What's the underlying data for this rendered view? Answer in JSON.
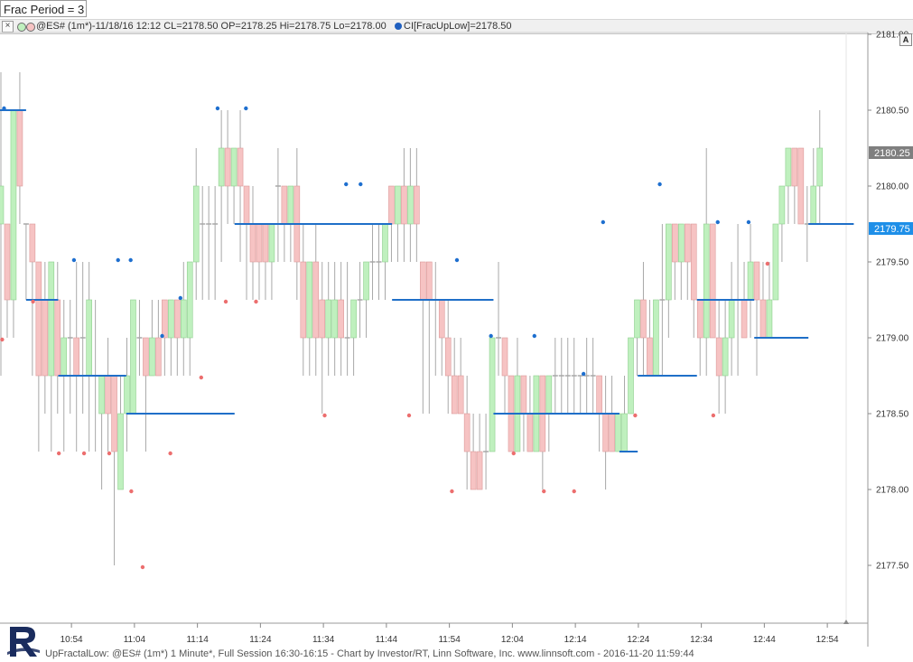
{
  "period_label": "Frac Period = 3",
  "info_bar": {
    "text": "@ES# (1m*)-11/18/16 12:12 CL=2178.50 OP=2178.25 Hi=2178.75 Lo=2178.00",
    "indicator_text": "CI[FracUpLow]=2178.50",
    "close_icon": "close-x-icon"
  },
  "status_text": "UpFractalLow: @ES# (1m*) 1 Minute*, Full Session 16:30-16:15 - Chart by Investor/RT, Linn Software, Inc. www.linnsoft.com - 2016-11-20 11:59:44",
  "autoscale_button": "A",
  "price_tags": {
    "last": "2180.25",
    "fractal": "2179.75"
  },
  "colors": {
    "up_body": "#bff0be",
    "down_body": "#f6c3c3",
    "wick": "#a8a8a8",
    "fractal_line": "#1f6fc8",
    "up_dot": "#1e6fcf",
    "low_dot": "#ec6e6e",
    "last_tag": "#7f7f7f",
    "fractal_tag": "#1e8fe8"
  },
  "chart_data": {
    "type": "candlestick",
    "bar_interval": "1 Minute",
    "y_ticks": [
      "2181.00",
      "2180.50",
      "2180.00",
      "2179.50",
      "2179.00",
      "2178.50",
      "2178.00",
      "2177.50"
    ],
    "x_ticks": [
      "10:54",
      "11:04",
      "11:14",
      "11:24",
      "11:34",
      "11:44",
      "11:54",
      "12:04",
      "12:14",
      "12:24",
      "12:34",
      "12:44",
      "12:54"
    ],
    "ylim": [
      2177.05,
      2181.15
    ],
    "candles": [
      [
        2179.75,
        2180.0,
        2178.75,
        2180.75
      ],
      [
        2179.75,
        2179.25,
        2179.0,
        2179.75
      ],
      [
        2179.25,
        2180.5,
        2179.0,
        2180.5
      ],
      [
        2180.5,
        2180.0,
        2179.75,
        2180.75
      ],
      [
        2179.75,
        2179.75,
        2179.25,
        2179.75
      ],
      [
        2179.75,
        2179.5,
        2178.75,
        2179.75
      ],
      [
        2179.5,
        2178.75,
        2178.25,
        2179.5
      ],
      [
        2179.25,
        2178.75,
        2178.5,
        2179.5
      ],
      [
        2178.75,
        2179.5,
        2178.25,
        2179.5
      ],
      [
        2179.25,
        2178.75,
        2178.5,
        2179.5
      ],
      [
        2178.75,
        2179.0,
        2178.25,
        2179.25
      ],
      [
        2179.0,
        2179.0,
        2178.5,
        2179.25
      ],
      [
        2179.0,
        2178.75,
        2178.25,
        2179.5
      ],
      [
        2179.0,
        2179.0,
        2178.5,
        2179.5
      ],
      [
        2178.75,
        2179.25,
        2178.25,
        2179.5
      ],
      [
        2178.75,
        2178.75,
        2178.25,
        2179.25
      ],
      [
        2178.5,
        2178.75,
        2178.0,
        2178.75
      ],
      [
        2178.75,
        2178.5,
        2178.25,
        2179.0
      ],
      [
        2178.75,
        2178.25,
        2177.5,
        2178.75
      ],
      [
        2178.0,
        2178.5,
        2178.0,
        2178.75
      ],
      [
        2178.5,
        2178.75,
        2178.25,
        2179.0
      ],
      [
        2178.5,
        2179.25,
        2178.5,
        2179.25
      ],
      [
        2179.0,
        2179.0,
        2178.75,
        2179.25
      ],
      [
        2179.0,
        2178.75,
        2178.25,
        2179.0
      ],
      [
        2178.75,
        2179.0,
        2178.75,
        2179.25
      ],
      [
        2179.0,
        2178.75,
        2178.75,
        2179.25
      ],
      [
        2179.25,
        2179.0,
        2178.75,
        2179.25
      ],
      [
        2179.0,
        2179.25,
        2178.75,
        2179.25
      ],
      [
        2179.25,
        2179.0,
        2178.75,
        2179.25
      ],
      [
        2179.0,
        2179.25,
        2178.75,
        2179.5
      ],
      [
        2179.0,
        2179.5,
        2178.75,
        2179.5
      ],
      [
        2179.5,
        2180.0,
        2179.25,
        2180.25
      ],
      [
        2179.75,
        2179.75,
        2179.25,
        2180.0
      ],
      [
        2179.75,
        2179.75,
        2179.25,
        2180.0
      ],
      [
        2179.75,
        2179.75,
        2179.25,
        2180.0
      ],
      [
        2180.0,
        2180.25,
        2179.5,
        2180.5
      ],
      [
        2180.25,
        2180.0,
        2179.75,
        2180.5
      ],
      [
        2180.0,
        2180.25,
        2179.75,
        2180.25
      ],
      [
        2180.25,
        2180.0,
        2179.5,
        2180.5
      ],
      [
        2180.0,
        2179.75,
        2179.25,
        2180.0
      ],
      [
        2179.75,
        2179.5,
        2179.25,
        2180.0
      ],
      [
        2179.75,
        2179.5,
        2179.25,
        2179.75
      ],
      [
        2179.75,
        2179.5,
        2179.25,
        2179.75
      ],
      [
        2179.5,
        2179.75,
        2179.25,
        2179.75
      ],
      [
        2180.0,
        2180.0,
        2179.5,
        2180.25
      ],
      [
        2180.0,
        2179.75,
        2179.5,
        2180.0
      ],
      [
        2179.75,
        2180.0,
        2179.5,
        2180.0
      ],
      [
        2180.0,
        2179.5,
        2179.25,
        2180.25
      ],
      [
        2179.5,
        2179.0,
        2178.75,
        2179.75
      ],
      [
        2179.0,
        2179.5,
        2178.75,
        2179.5
      ],
      [
        2179.5,
        2179.0,
        2178.75,
        2179.75
      ],
      [
        2179.25,
        2179.0,
        2178.5,
        2179.5
      ],
      [
        2179.0,
        2179.25,
        2178.75,
        2179.5
      ],
      [
        2179.0,
        2179.25,
        2178.75,
        2179.5
      ],
      [
        2179.25,
        2179.0,
        2178.75,
        2179.5
      ],
      [
        2179.0,
        2179.0,
        2178.75,
        2179.5
      ],
      [
        2179.0,
        2179.25,
        2178.75,
        2179.25
      ],
      [
        2179.25,
        2179.25,
        2179.0,
        2179.5
      ],
      [
        2179.25,
        2179.5,
        2179.0,
        2179.5
      ],
      [
        2179.5,
        2179.5,
        2179.25,
        2179.75
      ],
      [
        2179.5,
        2179.5,
        2179.25,
        2179.75
      ],
      [
        2179.5,
        2179.75,
        2179.25,
        2179.75
      ],
      [
        2180.0,
        2179.75,
        2179.5,
        2180.0
      ],
      [
        2179.75,
        2180.0,
        2179.5,
        2180.0
      ],
      [
        2180.0,
        2179.75,
        2179.5,
        2180.25
      ],
      [
        2179.75,
        2180.0,
        2179.5,
        2180.25
      ],
      [
        2180.0,
        2179.75,
        2179.5,
        2180.25
      ],
      [
        2179.5,
        2179.25,
        2178.5,
        2179.5
      ],
      [
        2179.5,
        2179.25,
        2178.5,
        2179.5
      ],
      [
        2179.25,
        2179.25,
        2178.75,
        2179.5
      ],
      [
        2179.25,
        2179.0,
        2178.75,
        2179.25
      ],
      [
        2179.0,
        2178.75,
        2178.5,
        2179.25
      ],
      [
        2178.75,
        2178.5,
        2178.5,
        2179.0
      ],
      [
        2178.75,
        2178.5,
        2178.5,
        2179.0
      ],
      [
        2178.5,
        2178.25,
        2178.0,
        2178.75
      ],
      [
        2178.25,
        2178.0,
        2178.0,
        2178.5
      ],
      [
        2178.25,
        2178.0,
        2178.0,
        2178.5
      ],
      [
        2178.25,
        2178.25,
        2178.0,
        2178.5
      ],
      [
        2178.25,
        2179.0,
        2178.25,
        2179.0
      ],
      [
        2179.0,
        2179.0,
        2178.75,
        2179.5
      ],
      [
        2179.0,
        2178.75,
        2178.5,
        2179.0
      ],
      [
        2178.75,
        2178.25,
        2178.25,
        2178.75
      ],
      [
        2178.25,
        2178.75,
        2178.25,
        2179.0
      ],
      [
        2178.75,
        2178.5,
        2178.25,
        2178.75
      ],
      [
        2178.5,
        2178.25,
        2178.25,
        2178.75
      ],
      [
        2178.25,
        2178.75,
        2178.25,
        2178.75
      ],
      [
        2178.75,
        2178.25,
        2178.0,
        2178.75
      ],
      [
        2178.5,
        2178.75,
        2178.25,
        2178.75
      ],
      [
        2178.75,
        2178.75,
        2178.5,
        2179.0
      ],
      [
        2178.75,
        2178.75,
        2178.5,
        2179.0
      ],
      [
        2178.75,
        2178.75,
        2178.5,
        2179.0
      ],
      [
        2178.75,
        2178.75,
        2178.5,
        2179.0
      ],
      [
        2178.75,
        2178.75,
        2178.5,
        2178.75
      ],
      [
        2178.75,
        2178.75,
        2178.5,
        2179.0
      ],
      [
        2178.75,
        2178.75,
        2178.5,
        2179.0
      ],
      [
        2178.75,
        2178.5,
        2178.25,
        2178.75
      ],
      [
        2178.5,
        2178.25,
        2178.0,
        2178.75
      ],
      [
        2178.5,
        2178.25,
        2178.25,
        2178.75
      ],
      [
        2178.25,
        2178.5,
        2178.25,
        2178.5
      ],
      [
        2178.25,
        2178.5,
        2178.25,
        2178.75
      ],
      [
        2178.5,
        2179.0,
        2178.5,
        2179.0
      ],
      [
        2179.0,
        2179.25,
        2178.75,
        2179.25
      ],
      [
        2179.25,
        2179.0,
        2178.75,
        2179.5
      ],
      [
        2179.0,
        2178.75,
        2178.75,
        2179.25
      ],
      [
        2178.75,
        2179.25,
        2178.75,
        2179.25
      ],
      [
        2179.25,
        2179.25,
        2178.75,
        2179.75
      ],
      [
        2179.25,
        2179.75,
        2179.0,
        2179.75
      ],
      [
        2179.75,
        2179.5,
        2179.25,
        2179.75
      ],
      [
        2179.5,
        2179.75,
        2179.25,
        2179.75
      ],
      [
        2179.75,
        2179.5,
        2179.25,
        2179.75
      ],
      [
        2179.75,
        2179.25,
        2179.0,
        2179.75
      ],
      [
        2179.25,
        2179.0,
        2178.75,
        2179.25
      ],
      [
        2179.0,
        2179.75,
        2178.75,
        2180.25
      ],
      [
        2179.75,
        2179.0,
        2179.0,
        2179.75
      ],
      [
        2179.0,
        2178.75,
        2178.5,
        2179.25
      ],
      [
        2178.75,
        2179.0,
        2178.5,
        2179.25
      ],
      [
        2179.0,
        2179.25,
        2178.75,
        2179.5
      ],
      [
        2179.25,
        2179.25,
        2178.75,
        2179.75
      ],
      [
        2179.25,
        2179.0,
        2179.0,
        2179.5
      ],
      [
        2179.25,
        2179.5,
        2179.0,
        2179.75
      ],
      [
        2179.5,
        2179.25,
        2178.75,
        2179.5
      ],
      [
        2179.25,
        2179.0,
        2179.0,
        2179.5
      ],
      [
        2179.0,
        2179.25,
        2179.0,
        2179.5
      ],
      [
        2179.25,
        2179.75,
        2179.25,
        2179.75
      ],
      [
        2179.75,
        2180.0,
        2179.5,
        2180.0
      ],
      [
        2180.0,
        2180.25,
        2179.75,
        2180.25
      ],
      [
        2180.25,
        2180.0,
        2179.75,
        2180.25
      ],
      [
        2180.25,
        2179.75,
        2179.75,
        2180.25
      ],
      [
        2179.75,
        2179.75,
        2179.5,
        2180.0
      ],
      [
        2179.75,
        2180.0,
        2179.75,
        2180.25
      ],
      [
        2180.0,
        2180.25,
        2179.75,
        2180.5
      ]
    ],
    "fractal_highs": [
      {
        "x": 0.5,
        "y": 2180.5
      },
      {
        "x": 11.6,
        "y": 2179.5
      },
      {
        "x": 18.6,
        "y": 2179.5
      },
      {
        "x": 20.6,
        "y": 2179.5
      },
      {
        "x": 25.6,
        "y": 2179.0
      },
      {
        "x": 28.5,
        "y": 2179.25
      },
      {
        "x": 34.4,
        "y": 2180.5
      },
      {
        "x": 38.9,
        "y": 2180.5
      },
      {
        "x": 54.8,
        "y": 2180.0
      },
      {
        "x": 57.1,
        "y": 2180.0
      },
      {
        "x": 72.4,
        "y": 2179.5
      },
      {
        "x": 77.8,
        "y": 2179.0
      },
      {
        "x": 84.7,
        "y": 2179.0
      },
      {
        "x": 92.5,
        "y": 2178.75
      },
      {
        "x": 95.6,
        "y": 2179.75
      },
      {
        "x": 104.6,
        "y": 2180.0
      },
      {
        "x": 113.8,
        "y": 2179.75
      },
      {
        "x": 118.7,
        "y": 2179.75
      }
    ],
    "fractal_lows": [
      {
        "x": 0.2,
        "y": 2179.0
      },
      {
        "x": 5.1,
        "y": 2179.25
      },
      {
        "x": 9.2,
        "y": 2178.25
      },
      {
        "x": 13.2,
        "y": 2178.25
      },
      {
        "x": 17.2,
        "y": 2178.25
      },
      {
        "x": 20.7,
        "y": 2178.0
      },
      {
        "x": 22.5,
        "y": 2177.5
      },
      {
        "x": 26.9,
        "y": 2178.25
      },
      {
        "x": 31.8,
        "y": 2178.75
      },
      {
        "x": 35.7,
        "y": 2179.25
      },
      {
        "x": 40.5,
        "y": 2179.25
      },
      {
        "x": 51.4,
        "y": 2178.5
      },
      {
        "x": 64.8,
        "y": 2178.5
      },
      {
        "x": 71.6,
        "y": 2178.0
      },
      {
        "x": 81.4,
        "y": 2178.25
      },
      {
        "x": 86.2,
        "y": 2178.0
      },
      {
        "x": 91.0,
        "y": 2178.0
      },
      {
        "x": 100.7,
        "y": 2178.5
      },
      {
        "x": 113.1,
        "y": 2178.5
      },
      {
        "x": 121.7,
        "y": 2179.5
      }
    ],
    "fractal_levels": [
      {
        "from": -0.5,
        "to": 4.0,
        "y": 2180.5
      },
      {
        "from": 4.0,
        "to": 9.1,
        "y": 2179.25
      },
      {
        "from": 9.1,
        "to": 19.9,
        "y": 2178.75
      },
      {
        "from": 19.9,
        "to": 37.1,
        "y": 2178.5
      },
      {
        "from": 37.1,
        "to": 62.1,
        "y": 2179.75
      },
      {
        "from": 62.1,
        "to": 78.2,
        "y": 2179.25
      },
      {
        "from": 78.2,
        "to": 98.2,
        "y": 2178.5
      },
      {
        "from": 98.2,
        "to": 101.1,
        "y": 2178.25
      },
      {
        "from": 101.1,
        "to": 110.5,
        "y": 2178.75
      },
      {
        "from": 110.5,
        "to": 119.6,
        "y": 2179.25
      },
      {
        "from": 119.6,
        "to": 128.2,
        "y": 2179.0
      },
      {
        "from": 128.2,
        "to": 135.4,
        "y": 2179.75
      }
    ]
  }
}
